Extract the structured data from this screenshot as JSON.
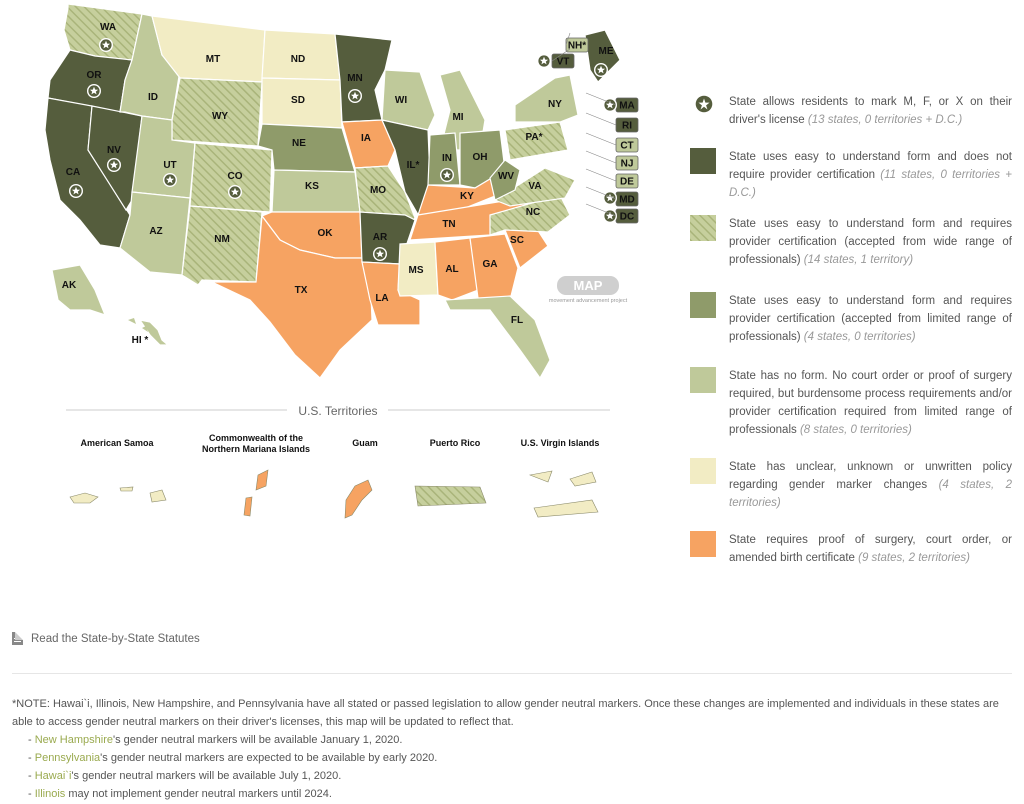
{
  "map": {
    "watermark": {
      "logo": "MAP",
      "caption": "movement advancement project"
    },
    "state_labels": [
      {
        "abbr": "WA",
        "star": true
      },
      {
        "abbr": "OR",
        "star": true
      },
      {
        "abbr": "CA",
        "star": true
      },
      {
        "abbr": "NV",
        "star": true
      },
      {
        "abbr": "ID",
        "star": false
      },
      {
        "abbr": "MT",
        "star": false
      },
      {
        "abbr": "WY",
        "star": false
      },
      {
        "abbr": "UT",
        "star": true
      },
      {
        "abbr": "CO",
        "star": true
      },
      {
        "abbr": "AZ",
        "star": false
      },
      {
        "abbr": "NM",
        "star": false
      },
      {
        "abbr": "ND",
        "star": false
      },
      {
        "abbr": "SD",
        "star": false
      },
      {
        "abbr": "NE",
        "star": false
      },
      {
        "abbr": "KS",
        "star": false
      },
      {
        "abbr": "OK",
        "star": false
      },
      {
        "abbr": "TX",
        "star": false
      },
      {
        "abbr": "MN",
        "star": true
      },
      {
        "abbr": "IA",
        "star": false
      },
      {
        "abbr": "MO",
        "star": false
      },
      {
        "abbr": "AR",
        "star": true
      },
      {
        "abbr": "LA",
        "star": false
      },
      {
        "abbr": "WI",
        "star": false
      },
      {
        "abbr": "IL*",
        "star": false
      },
      {
        "abbr": "MI",
        "star": false
      },
      {
        "abbr": "IN",
        "star": true
      },
      {
        "abbr": "OH",
        "star": false
      },
      {
        "abbr": "KY",
        "star": false
      },
      {
        "abbr": "TN",
        "star": false
      },
      {
        "abbr": "MS",
        "star": false
      },
      {
        "abbr": "AL",
        "star": false
      },
      {
        "abbr": "GA",
        "star": false
      },
      {
        "abbr": "FL",
        "star": false
      },
      {
        "abbr": "SC",
        "star": false
      },
      {
        "abbr": "NC",
        "star": false
      },
      {
        "abbr": "VA",
        "star": false
      },
      {
        "abbr": "WV",
        "star": false
      },
      {
        "abbr": "PA*",
        "star": false
      },
      {
        "abbr": "NY",
        "star": false
      },
      {
        "abbr": "ME",
        "star": true
      },
      {
        "abbr": "AK",
        "star": false
      },
      {
        "abbr": "HI *",
        "star": false
      }
    ],
    "northeast_boxes": [
      {
        "abbr": "NH*",
        "star": false
      },
      {
        "abbr": "VT",
        "star": true
      },
      {
        "abbr": "MA",
        "star": true
      },
      {
        "abbr": "RI",
        "star": false
      },
      {
        "abbr": "CT",
        "star": false
      },
      {
        "abbr": "NJ",
        "star": false
      },
      {
        "abbr": "DE",
        "star": false
      },
      {
        "abbr": "MD",
        "star": true
      },
      {
        "abbr": "DC",
        "star": true
      }
    ],
    "territories_heading": "U.S. Territories",
    "territories": [
      {
        "name": "American Samoa"
      },
      {
        "name": "Commonwealth of the Northern Mariana Islands"
      },
      {
        "name": "Guam"
      },
      {
        "name": "Puerto Rico"
      },
      {
        "name": "U.S. Virgin Islands"
      }
    ]
  },
  "colors": {
    "dark": "#555d3d",
    "medium": "#8f9b6a",
    "light_green": "#bfc99a",
    "pale": "#f2ecc4",
    "orange": "#f6a362",
    "hatch_base": "#c6cf9d",
    "hatch_line": "#a9b47a",
    "border": "#ffffff"
  },
  "legend": [
    {
      "icon": "star-icon",
      "text": "State allows residents to mark M, F, or X on their driver's license",
      "count": "(13 states, 0 territories + D.C.)"
    },
    {
      "swatch": "dark",
      "text": "State uses easy to understand form and does not require provider certification",
      "count": "(11 states, 0 territories + D.C.)"
    },
    {
      "swatch": "hatched",
      "text": "State uses easy to understand form and requires provider certification (accepted from wide range of professionals)",
      "count": "(14 states, 1 territory)"
    },
    {
      "swatch": "medium",
      "text": "State uses easy to understand form and requires provider certification (accepted from limited range of professionals)",
      "count": "(4 states, 0 territories)"
    },
    {
      "swatch": "light_green",
      "text": "State has no form. No court order or proof of surgery required, but burdensome process requirements and/or provider certification required from limited range of professionals",
      "count": "(8 states, 0 territories)"
    },
    {
      "swatch": "pale",
      "text": "State has unclear, unknown or unwritten policy regarding gender marker changes",
      "count": "(4 states, 2 territories)"
    },
    {
      "swatch": "orange",
      "text": "State requires proof of surgery, court order, or amended birth certificate",
      "count": "(9 states, 2 territories)"
    }
  ],
  "statutes_link": {
    "icon": "document-icon",
    "label": "Read the State-by-State Statutes"
  },
  "notes": {
    "main": "*NOTE: Hawai`i, Illinois, New Hampshire, and Pennsylvania have all stated or passed legislation to allow gender neutral markers.  Once these changes are implemented and individuals in these states are  able to access gender neutral markers on their driver's licenses, this map will be updated to reflect that.",
    "bullets": [
      {
        "prefix": "- ",
        "link": "New Hampshire",
        "rest": "'s gender neutral markers will be available January 1, 2020."
      },
      {
        "prefix": "- ",
        "link": "Pennsylvania",
        "rest": "'s gender neutral markers are expected to be available by early 2020."
      },
      {
        "prefix": "- ",
        "link": "Hawai`i",
        "rest": "'s gender neutral markers will be available July 1, 2020."
      },
      {
        "prefix": "- ",
        "link": "Illinois",
        "rest": " may not implement gender neutral markers until 2024."
      }
    ]
  }
}
